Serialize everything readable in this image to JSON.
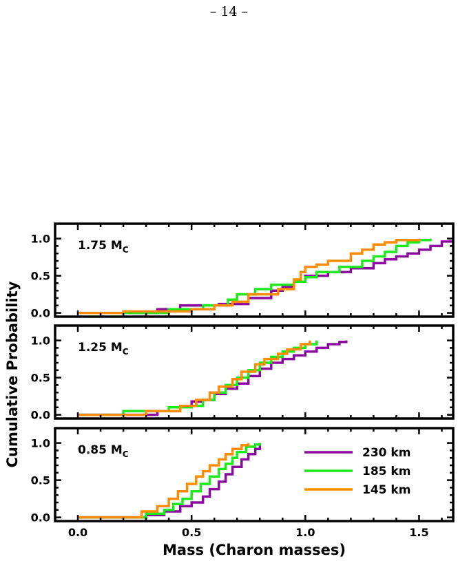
{
  "page": {
    "number": "– 14 –"
  },
  "chart_data": {
    "type": "line",
    "xlabel": "Mass (Charon masses)",
    "ylabel": "Cumulative Probability",
    "xlim": [
      -0.1,
      1.65
    ],
    "x_ticks": [
      0.0,
      0.5,
      1.0,
      1.5
    ],
    "x_tick_labels": [
      "0.0",
      "0.5",
      "1.0",
      "1.5"
    ],
    "grid": false,
    "legend": {
      "placement": "lower-right of bottom panel",
      "entries": [
        {
          "label": "230 km",
          "color": "#8b0a9e"
        },
        {
          "label": "185 km",
          "color": "#1ee81e"
        },
        {
          "label": "145 km",
          "color": "#ff8c00"
        }
      ]
    },
    "panels": [
      {
        "label_main": "1.75 M",
        "label_sub": "C",
        "ylim": [
          -0.05,
          1.2
        ],
        "y_ticks": [
          0.0,
          0.5,
          1.0
        ],
        "y_tick_labels": [
          "0.0",
          "0.5",
          "1.0"
        ],
        "series": [
          {
            "name": "230 km",
            "color": "#8b0a9e",
            "x": [
              0.22,
              0.35,
              0.45,
              0.62,
              0.75,
              0.85,
              0.9,
              0.95,
              1.0,
              1.1,
              1.2,
              1.3,
              1.35,
              1.4,
              1.45,
              1.5,
              1.55,
              1.6,
              1.65
            ],
            "y": [
              0.0,
              0.05,
              0.1,
              0.12,
              0.2,
              0.3,
              0.35,
              0.42,
              0.5,
              0.55,
              0.6,
              0.67,
              0.72,
              0.76,
              0.8,
              0.85,
              0.9,
              0.96,
              1.0
            ]
          },
          {
            "name": "185 km",
            "color": "#1ee81e",
            "x": [
              0.2,
              0.4,
              0.55,
              0.66,
              0.7,
              0.78,
              0.85,
              0.95,
              1.0,
              1.05,
              1.15,
              1.25,
              1.3,
              1.35,
              1.4,
              1.45,
              1.5,
              1.55
            ],
            "y": [
              0.0,
              0.05,
              0.1,
              0.18,
              0.25,
              0.32,
              0.38,
              0.42,
              0.48,
              0.55,
              0.62,
              0.7,
              0.76,
              0.82,
              0.9,
              0.95,
              0.98,
              1.0
            ]
          },
          {
            "name": "145 km",
            "color": "#ff8c00",
            "x": [
              0.0,
              0.2,
              0.5,
              0.6,
              0.68,
              0.75,
              0.88,
              0.95,
              0.98,
              1.0,
              1.05,
              1.1,
              1.2,
              1.25,
              1.3,
              1.35,
              1.4,
              1.5
            ],
            "y": [
              0.0,
              0.02,
              0.05,
              0.1,
              0.15,
              0.25,
              0.32,
              0.45,
              0.55,
              0.62,
              0.65,
              0.7,
              0.8,
              0.85,
              0.92,
              0.95,
              0.98,
              1.0
            ]
          }
        ]
      },
      {
        "label_main": "1.25 M",
        "label_sub": "C",
        "ylim": [
          -0.05,
          1.2
        ],
        "y_ticks": [
          0.0,
          0.5,
          1.0
        ],
        "y_tick_labels": [
          "0.0",
          "0.5",
          "1.0"
        ],
        "series": [
          {
            "name": "230 km",
            "color": "#8b0a9e",
            "x": [
              0.0,
              0.35,
              0.45,
              0.5,
              0.55,
              0.6,
              0.65,
              0.7,
              0.75,
              0.8,
              0.85,
              0.9,
              0.95,
              1.0,
              1.05,
              1.1,
              1.15,
              1.18
            ],
            "y": [
              0.0,
              0.05,
              0.1,
              0.18,
              0.2,
              0.28,
              0.35,
              0.42,
              0.52,
              0.62,
              0.7,
              0.75,
              0.8,
              0.85,
              0.9,
              0.95,
              0.98,
              1.0
            ]
          },
          {
            "name": "185 km",
            "color": "#1ee81e",
            "x": [
              0.0,
              0.2,
              0.4,
              0.5,
              0.55,
              0.6,
              0.65,
              0.7,
              0.75,
              0.8,
              0.85,
              0.9,
              0.95,
              1.0,
              1.05
            ],
            "y": [
              0.0,
              0.05,
              0.1,
              0.12,
              0.2,
              0.3,
              0.4,
              0.5,
              0.6,
              0.7,
              0.78,
              0.85,
              0.9,
              0.95,
              1.0
            ]
          },
          {
            "name": "145 km",
            "color": "#ff8c00",
            "x": [
              0.0,
              0.3,
              0.45,
              0.52,
              0.58,
              0.62,
              0.68,
              0.72,
              0.78,
              0.82,
              0.88,
              0.92,
              0.98,
              1.02
            ],
            "y": [
              0.0,
              0.05,
              0.12,
              0.2,
              0.3,
              0.38,
              0.48,
              0.58,
              0.68,
              0.75,
              0.82,
              0.88,
              0.95,
              1.0
            ]
          }
        ]
      },
      {
        "label_main": "0.85 M",
        "label_sub": "C",
        "ylim": [
          -0.05,
          1.2
        ],
        "y_ticks": [
          0.0,
          0.5,
          1.0
        ],
        "y_tick_labels": [
          "0.0",
          "0.5",
          "1.0"
        ],
        "series": [
          {
            "name": "230 km",
            "color": "#8b0a9e",
            "x": [
              0.0,
              0.3,
              0.38,
              0.45,
              0.5,
              0.55,
              0.58,
              0.62,
              0.65,
              0.68,
              0.72,
              0.75,
              0.78,
              0.8
            ],
            "y": [
              0.0,
              0.03,
              0.08,
              0.15,
              0.2,
              0.28,
              0.38,
              0.48,
              0.58,
              0.68,
              0.78,
              0.85,
              0.92,
              1.0
            ]
          },
          {
            "name": "185 km",
            "color": "#1ee81e",
            "x": [
              0.0,
              0.3,
              0.38,
              0.42,
              0.46,
              0.5,
              0.54,
              0.58,
              0.62,
              0.65,
              0.68,
              0.7,
              0.74,
              0.78,
              0.8
            ],
            "y": [
              0.0,
              0.05,
              0.1,
              0.18,
              0.25,
              0.35,
              0.45,
              0.55,
              0.65,
              0.72,
              0.8,
              0.88,
              0.95,
              0.98,
              1.0
            ]
          },
          {
            "name": "145 km",
            "color": "#ff8c00",
            "x": [
              0.0,
              0.28,
              0.35,
              0.4,
              0.44,
              0.48,
              0.52,
              0.55,
              0.58,
              0.62,
              0.65,
              0.68,
              0.72,
              0.75
            ],
            "y": [
              0.0,
              0.08,
              0.15,
              0.25,
              0.35,
              0.45,
              0.55,
              0.62,
              0.7,
              0.78,
              0.85,
              0.92,
              0.97,
              1.0
            ]
          }
        ]
      }
    ]
  }
}
